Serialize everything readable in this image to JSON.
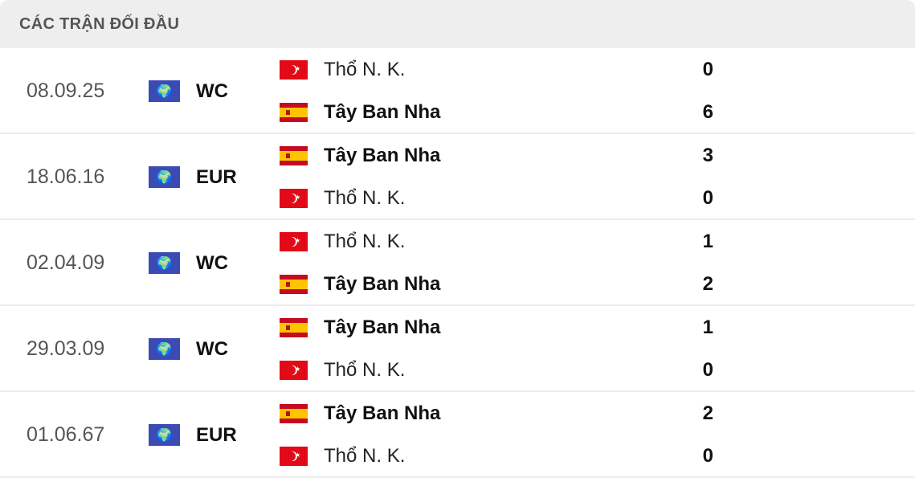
{
  "header": {
    "title": "CÁC TRẬN ĐỐI ĐẦU"
  },
  "matches": [
    {
      "date": "08.09.25",
      "competition": "WC",
      "teams": [
        {
          "name": "Thổ N. K.",
          "flag": "turkey",
          "score": "0",
          "winner": false
        },
        {
          "name": "Tây Ban Nha",
          "flag": "spain",
          "score": "6",
          "winner": true
        }
      ]
    },
    {
      "date": "18.06.16",
      "competition": "EUR",
      "teams": [
        {
          "name": "Tây Ban Nha",
          "flag": "spain",
          "score": "3",
          "winner": true
        },
        {
          "name": "Thổ N. K.",
          "flag": "turkey",
          "score": "0",
          "winner": false
        }
      ]
    },
    {
      "date": "02.04.09",
      "competition": "WC",
      "teams": [
        {
          "name": "Thổ N. K.",
          "flag": "turkey",
          "score": "1",
          "winner": false
        },
        {
          "name": "Tây Ban Nha",
          "flag": "spain",
          "score": "2",
          "winner": true
        }
      ]
    },
    {
      "date": "29.03.09",
      "competition": "WC",
      "teams": [
        {
          "name": "Tây Ban Nha",
          "flag": "spain",
          "score": "1",
          "winner": true
        },
        {
          "name": "Thổ N. K.",
          "flag": "turkey",
          "score": "0",
          "winner": false
        }
      ]
    },
    {
      "date": "01.06.67",
      "competition": "EUR",
      "teams": [
        {
          "name": "Tây Ban Nha",
          "flag": "spain",
          "score": "2",
          "winner": true
        },
        {
          "name": "Thổ N. K.",
          "flag": "turkey",
          "score": "0",
          "winner": false
        }
      ]
    }
  ]
}
